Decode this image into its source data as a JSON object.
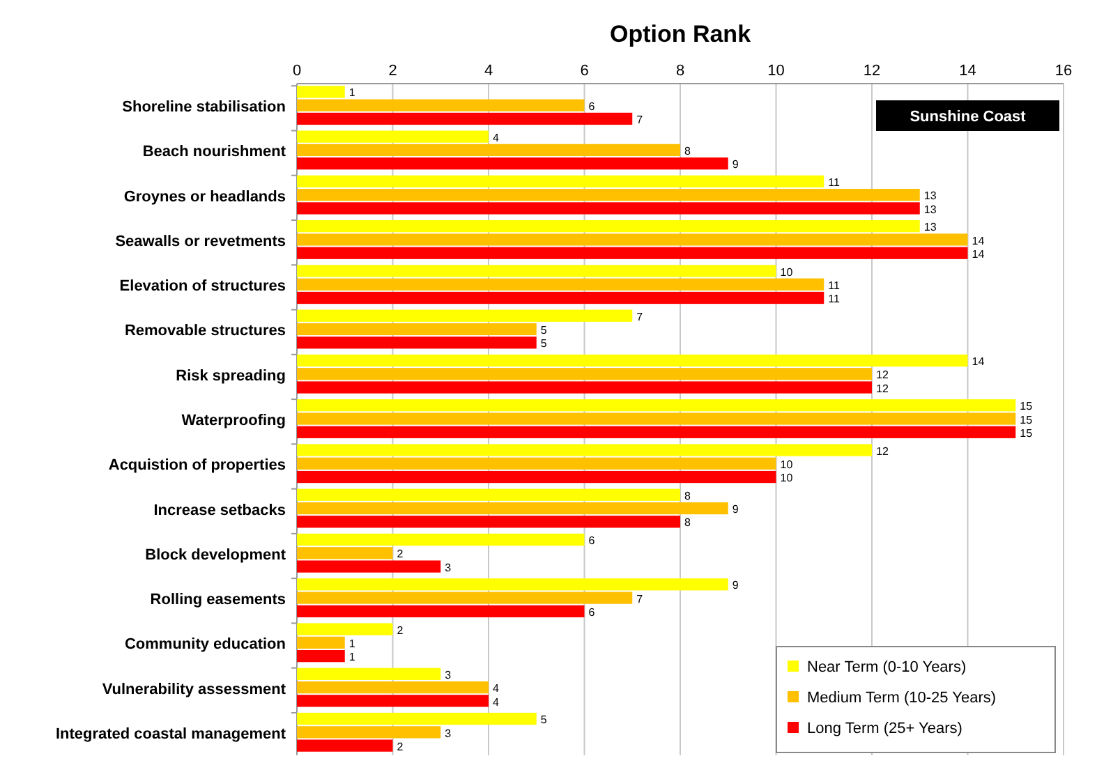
{
  "chart_data": {
    "type": "bar",
    "orientation": "horizontal",
    "title": "Option Rank",
    "categories": [
      "Shoreline stabilisation",
      "Beach nourishment",
      "Groynes or headlands",
      "Seawalls or revetments",
      "Elevation of structures",
      "Removable structures",
      "Risk spreading",
      "Waterproofing",
      "Acquistion of properties",
      "Increase setbacks",
      "Block development",
      "Rolling easements",
      "Community education",
      "Vulnerability assessment",
      "Integrated coastal management"
    ],
    "series": [
      {
        "name": "Near Term (0-10 Years)",
        "color": "#ffff00",
        "values": [
          1,
          4,
          11,
          13,
          10,
          7,
          14,
          15,
          12,
          8,
          6,
          9,
          2,
          3,
          5
        ]
      },
      {
        "name": "Medium Term (10-25 Years)",
        "color": "#ffc000",
        "values": [
          6,
          8,
          13,
          14,
          11,
          5,
          12,
          15,
          10,
          9,
          2,
          7,
          1,
          4,
          3
        ]
      },
      {
        "name": "Long Term (25+ Years)",
        "color": "#ff0000",
        "values": [
          7,
          9,
          13,
          14,
          11,
          5,
          12,
          15,
          10,
          8,
          3,
          6,
          1,
          4,
          2
        ]
      }
    ],
    "xlim": [
      0,
      16
    ],
    "xticks": [
      0,
      2,
      4,
      6,
      8,
      10,
      12,
      14,
      16
    ],
    "grid": "x",
    "legend": "bottom right",
    "data_labels": true,
    "annotations": [
      "Sunshine Coast"
    ]
  }
}
